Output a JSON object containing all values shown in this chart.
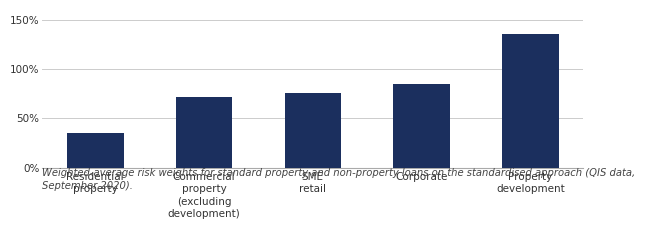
{
  "categories": [
    "Residential\nproperty",
    "Commercial\nproperty\n(excluding\ndevelopment)",
    "SME\nretail",
    "Corporate",
    "Property\ndevelopment"
  ],
  "values": [
    35,
    72,
    76,
    85,
    135
  ],
  "bar_color": "#1b2f5e",
  "ylim": [
    0,
    160
  ],
  "yticks": [
    0,
    50,
    100,
    150
  ],
  "ytick_labels": [
    "0%",
    "50%",
    "100%",
    "150%"
  ],
  "grid_color": "#cccccc",
  "background_color": "#ffffff",
  "footnote": "Weighted-average risk weights for standard property and non-property loans on the standardised approach (QIS data,\nSeptember 2020).",
  "footnote_fontsize": 7.2,
  "bar_width": 0.52,
  "tick_fontsize": 7.5,
  "axis_line_color": "#aaaaaa"
}
